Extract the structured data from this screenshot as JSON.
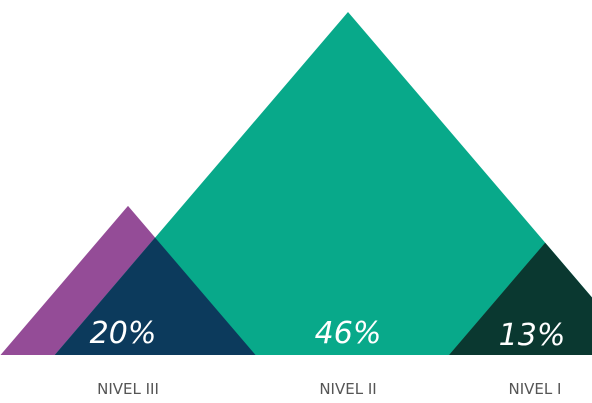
{
  "chart_data": {
    "type": "bar",
    "categories": [
      "NIVEL III",
      "NIVEL II",
      "NIVEL I"
    ],
    "values": [
      20,
      46,
      13
    ],
    "value_labels": [
      "20%",
      "46%",
      "13%"
    ],
    "colors": [
      "#944c97",
      "#08a98a",
      "#5a5451"
    ],
    "overlap_colors": [
      "#0c3a5c",
      "#0a3830"
    ],
    "title": "",
    "xlabel": "",
    "ylabel": ""
  }
}
